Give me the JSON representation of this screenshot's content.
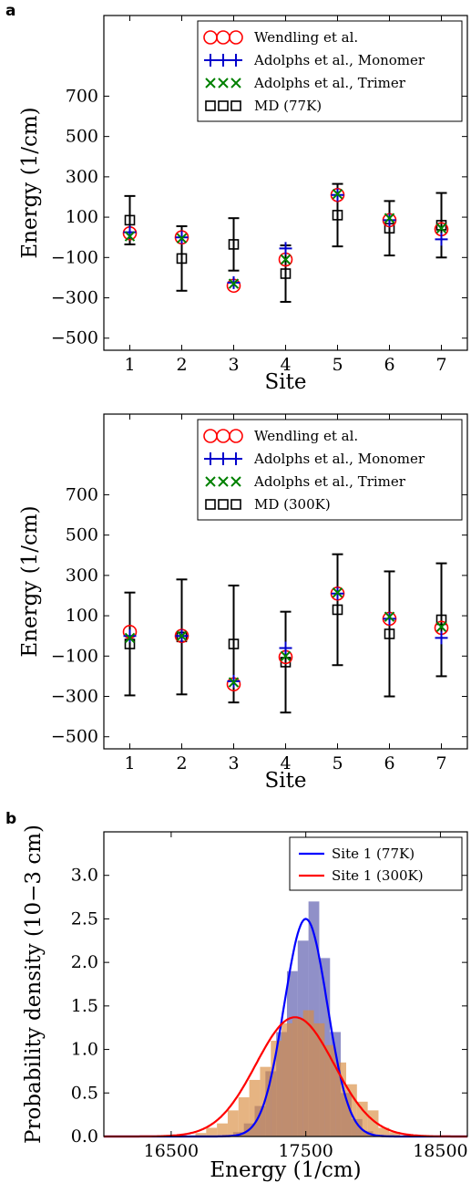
{
  "panel_labels": [
    "a",
    "b"
  ],
  "chart_data": [
    {
      "type": "scatter",
      "panel": "a",
      "xlabel": "Site",
      "ylabel": "Energy (1/cm)",
      "xlim": [
        0.5,
        7.5
      ],
      "ylim": [
        -560,
        1100
      ],
      "xticks": [
        1,
        2,
        3,
        4,
        5,
        6,
        7
      ],
      "yticks": [
        -500,
        -300,
        -100,
        100,
        300,
        500,
        700
      ],
      "legend_position": "top-right",
      "series": [
        {
          "name": "Wendling et al.",
          "marker": "circle",
          "color": "#ff0000",
          "x": [
            1,
            2,
            3,
            4,
            5,
            6,
            7
          ],
          "y": [
            20,
            0,
            -240,
            -110,
            210,
            85,
            40
          ]
        },
        {
          "name": "Adolphs et al., Monomer",
          "marker": "plus",
          "color": "#0000cc",
          "x": [
            1,
            2,
            3,
            4,
            5,
            6,
            7
          ],
          "y": [
            25,
            0,
            -225,
            -55,
            210,
            85,
            -10
          ]
        },
        {
          "name": "Adolphs et al., Trimer",
          "marker": "x",
          "color": "#008000",
          "x": [
            1,
            2,
            3,
            4,
            5,
            6,
            7
          ],
          "y": [
            5,
            -5,
            -230,
            -110,
            215,
            95,
            45
          ]
        },
        {
          "name": "MD (77K)",
          "marker": "square",
          "color": "#000000",
          "x": [
            1,
            2,
            3,
            4,
            5,
            6,
            7
          ],
          "y": [
            85,
            -105,
            -35,
            -180,
            110,
            45,
            60
          ],
          "err": [
            120,
            160,
            130,
            140,
            155,
            135,
            160
          ]
        }
      ]
    },
    {
      "type": "scatter",
      "xlabel": "Site",
      "ylabel": "Energy (1/cm)",
      "xlim": [
        0.5,
        7.5
      ],
      "ylim": [
        -560,
        1100
      ],
      "xticks": [
        1,
        2,
        3,
        4,
        5,
        6,
        7
      ],
      "yticks": [
        -500,
        -300,
        -100,
        100,
        300,
        500,
        700
      ],
      "legend_position": "top-right",
      "series": [
        {
          "name": "Wendling et al.",
          "marker": "circle",
          "color": "#ff0000",
          "x": [
            1,
            2,
            3,
            4,
            5,
            6,
            7
          ],
          "y": [
            20,
            0,
            -240,
            -105,
            210,
            85,
            40
          ]
        },
        {
          "name": "Adolphs et al., Monomer",
          "marker": "plus",
          "color": "#0000cc",
          "x": [
            1,
            2,
            3,
            4,
            5,
            6,
            7
          ],
          "y": [
            0,
            0,
            -225,
            -60,
            210,
            85,
            -10
          ]
        },
        {
          "name": "Adolphs et al., Trimer",
          "marker": "x",
          "color": "#008000",
          "x": [
            1,
            2,
            3,
            4,
            5,
            6,
            7
          ],
          "y": [
            -10,
            0,
            -230,
            -100,
            215,
            95,
            45
          ]
        },
        {
          "name": "MD (300K)",
          "marker": "square",
          "color": "#000000",
          "x": [
            1,
            2,
            3,
            4,
            5,
            6,
            7
          ],
          "y": [
            -40,
            -5,
            -40,
            -130,
            130,
            10,
            80
          ],
          "err": [
            255,
            285,
            290,
            250,
            275,
            310,
            280
          ]
        }
      ]
    },
    {
      "type": "area",
      "panel": "b",
      "xlabel": "Energy (1/cm)",
      "ylabel": "Probability density (10−3 cm)",
      "xlim": [
        16000,
        18700
      ],
      "ylim": [
        0,
        3.5
      ],
      "xticks": [
        16500,
        17500,
        18500
      ],
      "yticks": [
        0.0,
        0.5,
        1.0,
        1.5,
        2.0,
        2.5,
        3.0
      ],
      "legend_position": "top-right",
      "series": [
        {
          "name": "Site 1 (77K)",
          "color": "#0000ff",
          "mean": 17500,
          "sd": 160,
          "peak": 2.5
        },
        {
          "name": "Site 1 (300K)",
          "color": "#ff0000",
          "mean": 17420,
          "sd": 290,
          "peak": 1.37
        }
      ],
      "histograms": [
        {
          "color": "#5555aa",
          "bin_width": 80,
          "bins": [
            16880,
            16960,
            17040,
            17120,
            17200,
            17280,
            17360,
            17440,
            17520,
            17600,
            17680,
            17760,
            17840,
            17920,
            18000
          ],
          "values": [
            0.02,
            0.05,
            0.15,
            0.35,
            0.75,
            1.2,
            1.9,
            2.25,
            2.7,
            2.05,
            1.2,
            0.5,
            0.2,
            0.06,
            0.02
          ]
        },
        {
          "color": "#d98c3f",
          "bin_width": 80,
          "bins": [
            16680,
            16760,
            16840,
            16920,
            17000,
            17080,
            17160,
            17240,
            17320,
            17400,
            17480,
            17560,
            17640,
            17720,
            17800,
            17880,
            17960,
            18040,
            18120
          ],
          "values": [
            0.04,
            0.1,
            0.15,
            0.3,
            0.45,
            0.65,
            0.8,
            1.1,
            1.3,
            1.35,
            1.45,
            1.3,
            1.05,
            0.85,
            0.6,
            0.4,
            0.3,
            0.1,
            0.05
          ]
        }
      ]
    }
  ]
}
